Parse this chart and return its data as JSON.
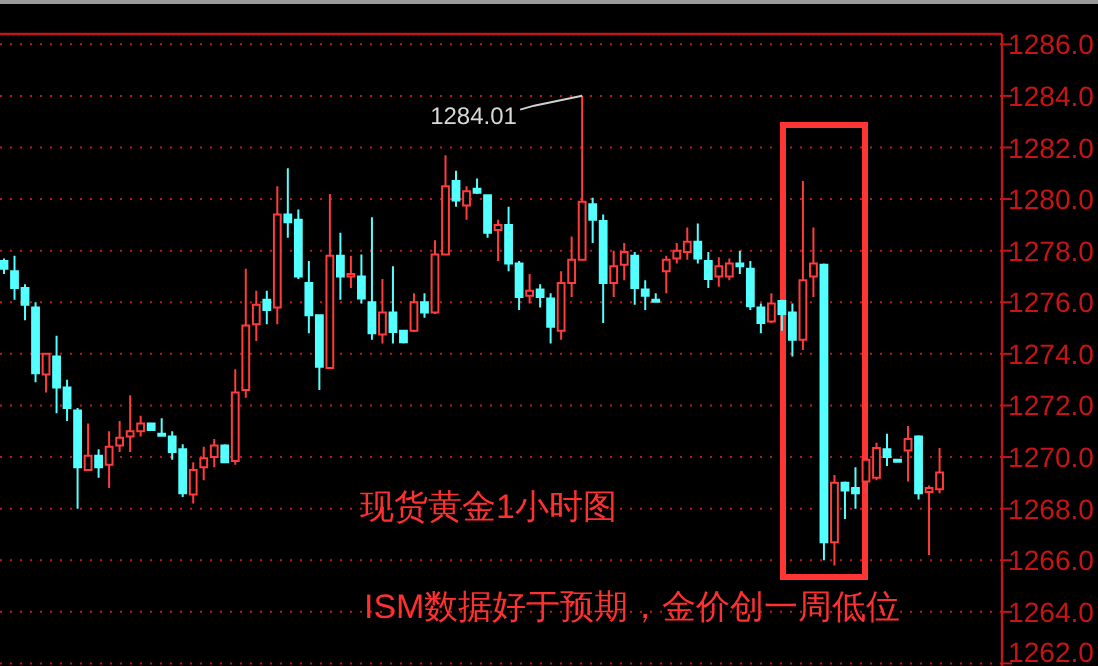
{
  "chart_data": {
    "type": "candlestick",
    "title": "现货黄金1小时图",
    "annotations": [
      "1284.01",
      "ISM数据好于预期，金价创一周低位"
    ],
    "categories": [
      null,
      null,
      null,
      null,
      null,
      null,
      null,
      null,
      null,
      null,
      null,
      null,
      null,
      null,
      null,
      null,
      null,
      null,
      null,
      null,
      null,
      null,
      null,
      null,
      null,
      null,
      null,
      null,
      null,
      null,
      null,
      null,
      null,
      null,
      null,
      null,
      null,
      null,
      null,
      null,
      null,
      null,
      null,
      null,
      null,
      null,
      null,
      null,
      null,
      null,
      null,
      null,
      null,
      null,
      null,
      null,
      null,
      null,
      null,
      null,
      null,
      null,
      null,
      null,
      null,
      null,
      null,
      null,
      null,
      null,
      null,
      null,
      null,
      null,
      null,
      null,
      null,
      null,
      null,
      null,
      null,
      null,
      null,
      null,
      null,
      null,
      null,
      null,
      null,
      null
    ],
    "ohlc": [
      [
        1277.6,
        1277.7,
        1277.1,
        1277.3
      ],
      [
        1277.2,
        1277.8,
        1276.1,
        1276.55
      ],
      [
        1276.55,
        1276.7,
        1275.3,
        1275.9
      ],
      [
        1275.8,
        1276.0,
        1272.9,
        1273.25
      ],
      [
        1273.2,
        1274.0,
        1272.5,
        1274.0
      ],
      [
        1273.9,
        1274.7,
        1271.7,
        1272.7
      ],
      [
        1272.7,
        1273.0,
        1271.4,
        1271.9
      ],
      [
        1271.8,
        1271.9,
        1268.0,
        1269.6
      ],
      [
        1269.5,
        1271.3,
        1269.5,
        1270.05
      ],
      [
        1270.05,
        1270.3,
        1269.2,
        1269.6
      ],
      [
        1269.7,
        1271.0,
        1268.8,
        1270.4
      ],
      [
        1270.45,
        1271.4,
        1270.2,
        1270.75
      ],
      [
        1270.8,
        1272.4,
        1270.2,
        1271.0
      ],
      [
        1271.0,
        1271.6,
        1270.8,
        1271.3
      ],
      [
        1271.3,
        1271.3,
        1271.05,
        1271.05
      ],
      [
        1270.9,
        1271.5,
        1270.8,
        1270.85
      ],
      [
        1270.8,
        1271.0,
        1269.9,
        1270.2
      ],
      [
        1270.3,
        1270.5,
        1268.45,
        1268.6
      ],
      [
        1268.55,
        1269.8,
        1268.2,
        1269.5
      ],
      [
        1269.6,
        1270.4,
        1269.1,
        1269.95
      ],
      [
        1270.0,
        1270.7,
        1269.6,
        1270.45
      ],
      [
        1270.45,
        1270.5,
        1269.8,
        1269.8
      ],
      [
        1269.85,
        1273.4,
        1269.7,
        1272.5
      ],
      [
        1272.6,
        1277.3,
        1272.3,
        1275.1
      ],
      [
        1275.15,
        1276.45,
        1274.5,
        1275.9
      ],
      [
        1276.1,
        1276.45,
        1275.15,
        1275.7
      ],
      [
        1275.8,
        1280.5,
        1275.15,
        1279.4
      ],
      [
        1279.4,
        1281.2,
        1278.5,
        1279.1
      ],
      [
        1279.2,
        1279.6,
        1276.9,
        1277.0
      ],
      [
        1276.75,
        1277.6,
        1274.8,
        1275.5
      ],
      [
        1275.5,
        1275.5,
        1272.6,
        1273.5
      ],
      [
        1273.45,
        1280.2,
        1273.45,
        1277.8
      ],
      [
        1277.8,
        1278.7,
        1276.1,
        1277.0
      ],
      [
        1277.0,
        1277.8,
        1276.55,
        1277.1
      ],
      [
        1277.0,
        1277.85,
        1275.95,
        1276.15
      ],
      [
        1276.0,
        1279.3,
        1274.55,
        1274.8
      ],
      [
        1274.75,
        1276.9,
        1274.4,
        1275.6
      ],
      [
        1275.6,
        1277.4,
        1274.4,
        1274.85
      ],
      [
        1274.9,
        1274.9,
        1274.4,
        1274.45
      ],
      [
        1274.9,
        1276.35,
        1274.85,
        1276.0
      ],
      [
        1276.0,
        1276.35,
        1275.4,
        1275.6
      ],
      [
        1275.6,
        1278.4,
        1275.55,
        1277.85
      ],
      [
        1277.85,
        1281.7,
        1277.85,
        1280.5
      ],
      [
        1280.7,
        1281.1,
        1279.7,
        1279.95
      ],
      [
        1279.75,
        1280.5,
        1279.2,
        1280.3
      ],
      [
        1280.4,
        1280.8,
        1280.2,
        1280.25
      ],
      [
        1280.15,
        1280.15,
        1278.5,
        1278.7
      ],
      [
        1278.8,
        1279.2,
        1277.6,
        1279.0
      ],
      [
        1279.0,
        1279.7,
        1277.2,
        1277.5
      ],
      [
        1277.5,
        1277.6,
        1275.7,
        1276.2
      ],
      [
        1276.25,
        1277.1,
        1275.95,
        1276.45
      ],
      [
        1276.5,
        1276.7,
        1275.8,
        1276.2
      ],
      [
        1276.15,
        1276.35,
        1274.4,
        1275.05
      ],
      [
        1274.9,
        1277.2,
        1274.55,
        1276.75
      ],
      [
        1276.75,
        1278.55,
        1276.2,
        1277.65
      ],
      [
        1277.65,
        1284.01,
        1277.65,
        1279.9
      ],
      [
        1279.8,
        1280.05,
        1278.3,
        1279.2
      ],
      [
        1279.15,
        1279.4,
        1275.2,
        1276.75
      ],
      [
        1276.75,
        1278.0,
        1276.2,
        1277.4
      ],
      [
        1277.45,
        1278.3,
        1276.85,
        1277.95
      ],
      [
        1277.8,
        1277.95,
        1275.9,
        1276.55
      ],
      [
        1276.5,
        1276.85,
        1275.7,
        1276.25
      ],
      [
        1276.1,
        1276.35,
        1276.0,
        1276.05
      ],
      [
        1277.2,
        1277.8,
        1276.35,
        1277.65
      ],
      [
        1277.7,
        1278.3,
        1277.5,
        1278.0
      ],
      [
        1277.95,
        1278.9,
        1277.65,
        1278.35
      ],
      [
        1278.35,
        1279.05,
        1277.5,
        1277.7
      ],
      [
        1277.6,
        1277.95,
        1276.55,
        1276.9
      ],
      [
        1277.0,
        1277.75,
        1276.6,
        1277.4
      ],
      [
        1277.0,
        1277.7,
        1276.85,
        1277.5
      ],
      [
        1277.5,
        1278.0,
        1277.1,
        1277.4
      ],
      [
        1277.3,
        1277.6,
        1275.7,
        1275.85
      ],
      [
        1275.8,
        1275.95,
        1274.8,
        1275.2
      ],
      [
        1275.25,
        1276.35,
        1275.2,
        1275.95
      ],
      [
        1276.05,
        1276.1,
        1274.9,
        1275.55
      ],
      [
        1275.6,
        1275.95,
        1273.9,
        1274.55
      ],
      [
        1274.55,
        1280.7,
        1274.15,
        1276.85
      ],
      [
        1277.0,
        1278.9,
        1276.2,
        1277.5
      ],
      [
        1277.45,
        1277.5,
        1266.0,
        1266.7
      ],
      [
        1266.7,
        1269.3,
        1265.8,
        1269.0
      ],
      [
        1269.0,
        1269.05,
        1267.6,
        1268.7
      ],
      [
        1268.8,
        1269.6,
        1268.0,
        1268.6
      ],
      [
        1269.05,
        1270.0,
        1268.55,
        1269.9
      ],
      [
        1269.2,
        1270.55,
        1269.1,
        1270.35
      ],
      [
        1270.3,
        1270.9,
        1269.65,
        1270.0
      ],
      [
        1269.9,
        1269.9,
        1269.85,
        1269.88
      ],
      [
        1270.25,
        1271.2,
        1269.05,
        1270.7
      ],
      [
        1270.8,
        1270.85,
        1268.35,
        1268.6
      ],
      [
        1268.65,
        1268.9,
        1266.2,
        1268.8
      ],
      [
        1268.75,
        1270.35,
        1268.6,
        1269.4
      ]
    ],
    "ylim": [
      1261.9,
      1286.4
    ],
    "yticks": [
      {
        "value": 1262,
        "label": "1262.0"
      },
      {
        "value": 1264,
        "label": "1264.0"
      },
      {
        "value": 1266,
        "label": "1266.0"
      },
      {
        "value": 1268,
        "label": "1268.0"
      },
      {
        "value": 1270,
        "label": "1270.0"
      },
      {
        "value": 1272,
        "label": "1272.0"
      },
      {
        "value": 1274,
        "label": "1274.0"
      },
      {
        "value": 1276,
        "label": "1276.0"
      },
      {
        "value": 1278,
        "label": "1278.0"
      },
      {
        "value": 1280,
        "label": "1280.0"
      },
      {
        "value": 1282,
        "label": "1282.0"
      },
      {
        "value": 1284,
        "label": "1284.0"
      },
      {
        "value": 1286,
        "label": "1286.0"
      }
    ],
    "grid": "y",
    "tick_labels": "y"
  }
}
